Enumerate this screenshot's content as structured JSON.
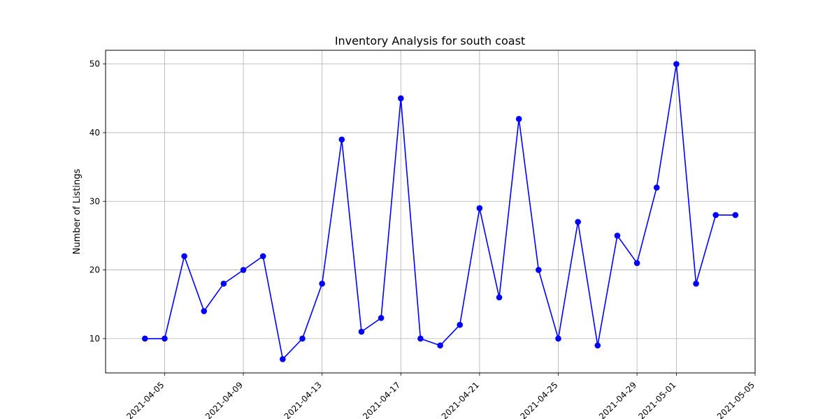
{
  "chart_data": {
    "type": "line",
    "title": "Inventory Analysis for south coast",
    "xlabel": "",
    "ylabel": "Number of Listings",
    "grid": true,
    "marker": "circle",
    "color": "#0000ff",
    "x": [
      "2021-04-04",
      "2021-04-05",
      "2021-04-06",
      "2021-04-07",
      "2021-04-08",
      "2021-04-09",
      "2021-04-10",
      "2021-04-11",
      "2021-04-12",
      "2021-04-13",
      "2021-04-14",
      "2021-04-15",
      "2021-04-16",
      "2021-04-17",
      "2021-04-18",
      "2021-04-19",
      "2021-04-20",
      "2021-04-21",
      "2021-04-22",
      "2021-04-23",
      "2021-04-24",
      "2021-04-25",
      "2021-04-26",
      "2021-04-27",
      "2021-04-28",
      "2021-04-29",
      "2021-04-30",
      "2021-05-01",
      "2021-05-02",
      "2021-05-03",
      "2021-05-04"
    ],
    "values": [
      10,
      10,
      22,
      14,
      18,
      20,
      22,
      7,
      10,
      18,
      39,
      11,
      13,
      45,
      10,
      9,
      12,
      29,
      16,
      42,
      20,
      10,
      27,
      9,
      25,
      21,
      32,
      50,
      18,
      28,
      28
    ],
    "xlim": [
      "2021-04-02",
      "2021-05-05"
    ],
    "ylim": [
      5,
      52
    ],
    "xticks": [
      "2021-04-05",
      "2021-04-09",
      "2021-04-13",
      "2021-04-17",
      "2021-04-21",
      "2021-04-25",
      "2021-04-29",
      "2021-05-01",
      "2021-05-05"
    ],
    "yticks": [
      10,
      20,
      30,
      40,
      50
    ]
  }
}
